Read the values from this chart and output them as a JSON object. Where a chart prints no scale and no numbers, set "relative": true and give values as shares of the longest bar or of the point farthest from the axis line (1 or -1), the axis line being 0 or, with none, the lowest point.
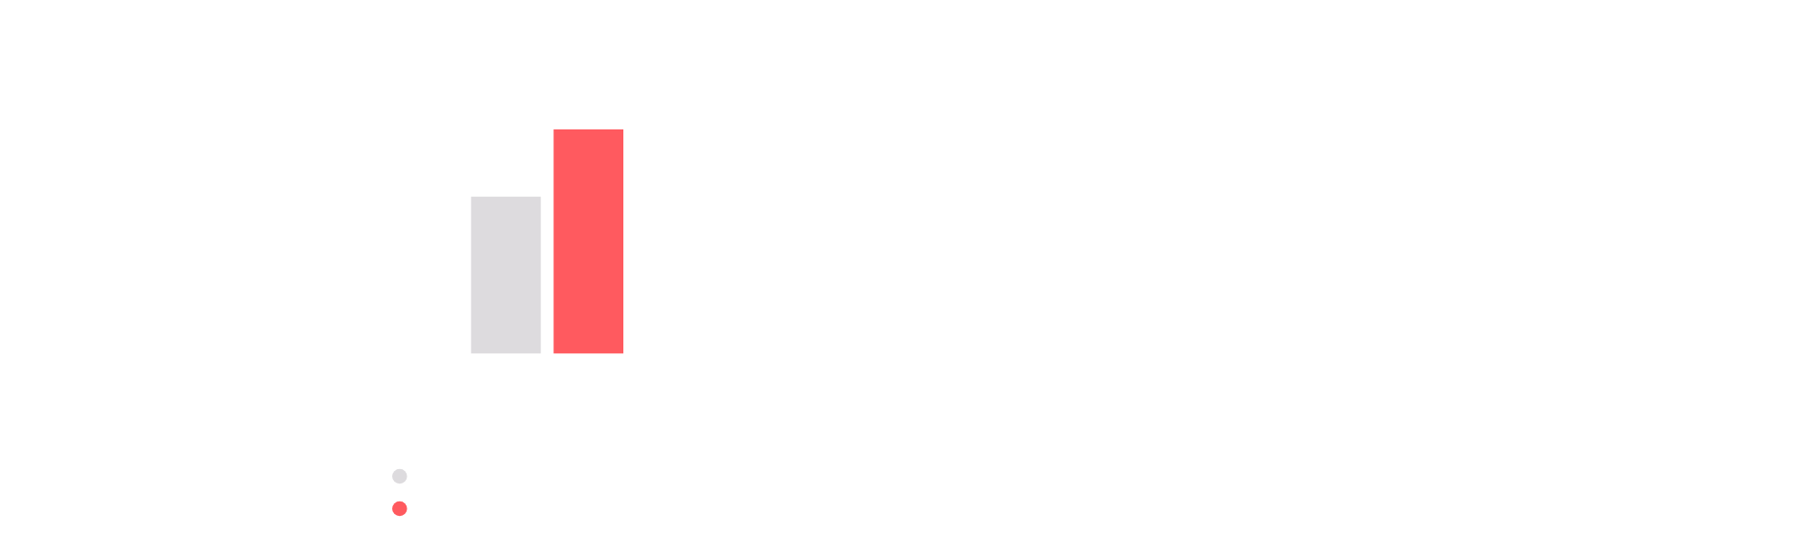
{
  "chart_data": {
    "type": "bar",
    "relative": true,
    "categories": [
      null
    ],
    "series": [
      {
        "color": "#dddbde",
        "values": [
          0.7
        ]
      },
      {
        "color": "#ff5a5f",
        "values": [
          1
        ]
      }
    ]
  }
}
